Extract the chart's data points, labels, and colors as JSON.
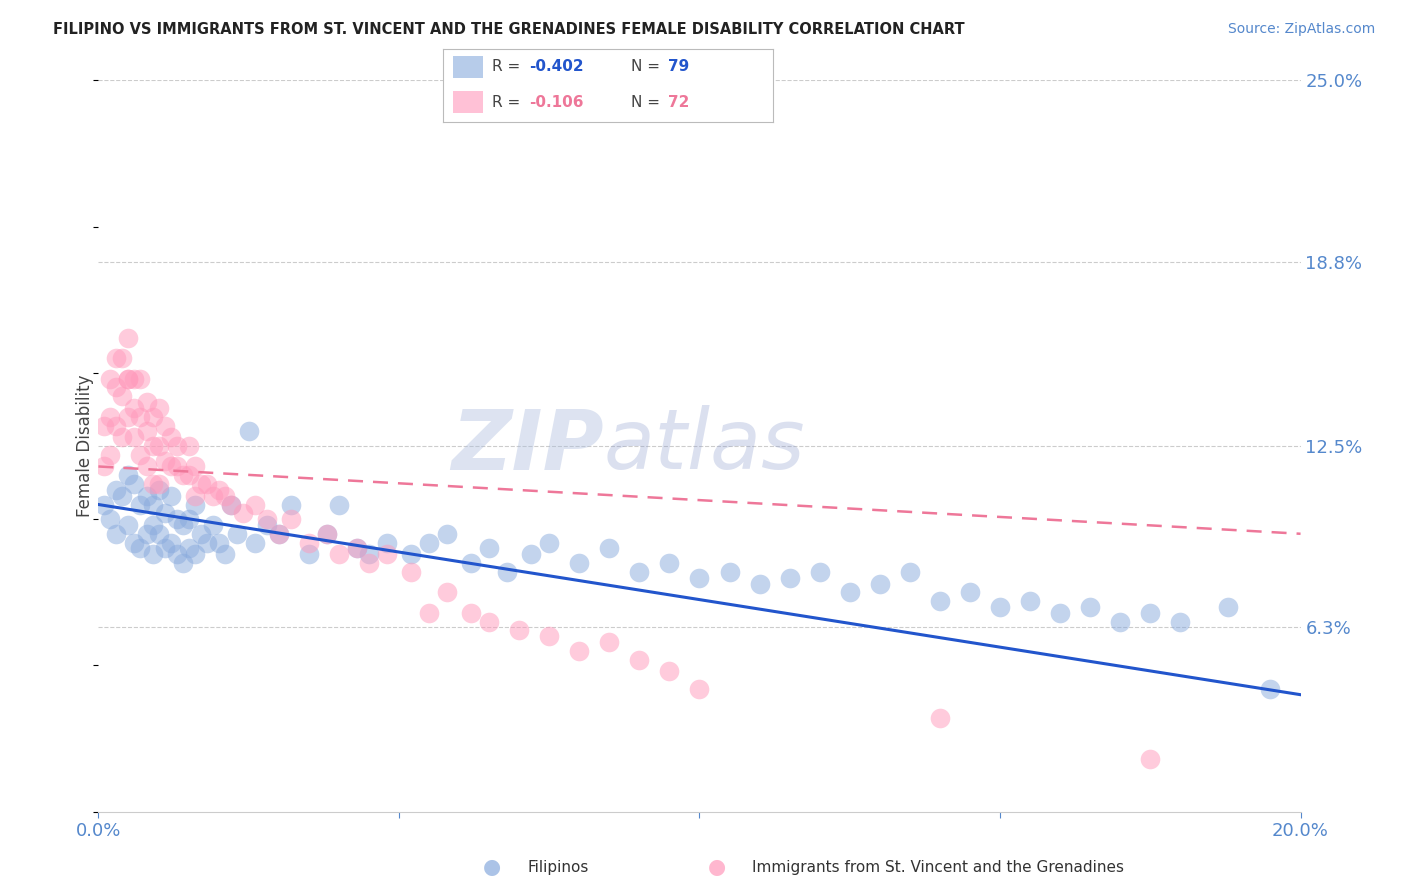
{
  "title": "FILIPINO VS IMMIGRANTS FROM ST. VINCENT AND THE GRENADINES FEMALE DISABILITY CORRELATION CHART",
  "source": "Source: ZipAtlas.com",
  "ylabel": "Female Disability",
  "xlim": [
    0.0,
    0.2
  ],
  "ylim": [
    0.0,
    0.25
  ],
  "ytick_vals": [
    0.063,
    0.125,
    0.188,
    0.25
  ],
  "ytick_labels": [
    "6.3%",
    "12.5%",
    "18.8%",
    "25.0%"
  ],
  "watermark_zip": "ZIP",
  "watermark_atlas": "atlas",
  "color_blue": "#88AADD",
  "color_pink": "#FF99BB",
  "color_blue_line": "#2255CC",
  "color_pink_line": "#EE7799",
  "color_axis_text": "#5588CC",
  "color_grid": "#CCCCCC",
  "filipino_x": [
    0.001,
    0.002,
    0.003,
    0.003,
    0.004,
    0.005,
    0.005,
    0.006,
    0.006,
    0.007,
    0.007,
    0.008,
    0.008,
    0.009,
    0.009,
    0.009,
    0.01,
    0.01,
    0.011,
    0.011,
    0.012,
    0.012,
    0.013,
    0.013,
    0.014,
    0.014,
    0.015,
    0.015,
    0.016,
    0.016,
    0.017,
    0.018,
    0.019,
    0.02,
    0.021,
    0.022,
    0.023,
    0.025,
    0.026,
    0.028,
    0.03,
    0.032,
    0.035,
    0.038,
    0.04,
    0.043,
    0.045,
    0.048,
    0.052,
    0.055,
    0.058,
    0.062,
    0.065,
    0.068,
    0.072,
    0.075,
    0.08,
    0.085,
    0.09,
    0.095,
    0.1,
    0.105,
    0.11,
    0.115,
    0.12,
    0.125,
    0.13,
    0.135,
    0.14,
    0.145,
    0.15,
    0.155,
    0.16,
    0.165,
    0.17,
    0.175,
    0.18,
    0.188,
    0.195
  ],
  "filipino_y": [
    0.105,
    0.1,
    0.11,
    0.095,
    0.108,
    0.115,
    0.098,
    0.112,
    0.092,
    0.105,
    0.09,
    0.108,
    0.095,
    0.105,
    0.098,
    0.088,
    0.11,
    0.095,
    0.102,
    0.09,
    0.108,
    0.092,
    0.1,
    0.088,
    0.098,
    0.085,
    0.1,
    0.09,
    0.105,
    0.088,
    0.095,
    0.092,
    0.098,
    0.092,
    0.088,
    0.105,
    0.095,
    0.13,
    0.092,
    0.098,
    0.095,
    0.105,
    0.088,
    0.095,
    0.105,
    0.09,
    0.088,
    0.092,
    0.088,
    0.092,
    0.095,
    0.085,
    0.09,
    0.082,
    0.088,
    0.092,
    0.085,
    0.09,
    0.082,
    0.085,
    0.08,
    0.082,
    0.078,
    0.08,
    0.082,
    0.075,
    0.078,
    0.082,
    0.072,
    0.075,
    0.07,
    0.072,
    0.068,
    0.07,
    0.065,
    0.068,
    0.065,
    0.07,
    0.042
  ],
  "svg_x": [
    0.001,
    0.001,
    0.002,
    0.002,
    0.002,
    0.003,
    0.003,
    0.003,
    0.004,
    0.004,
    0.004,
    0.005,
    0.005,
    0.005,
    0.005,
    0.006,
    0.006,
    0.006,
    0.007,
    0.007,
    0.007,
    0.008,
    0.008,
    0.008,
    0.009,
    0.009,
    0.009,
    0.01,
    0.01,
    0.01,
    0.011,
    0.011,
    0.012,
    0.012,
    0.013,
    0.013,
    0.014,
    0.015,
    0.015,
    0.016,
    0.016,
    0.017,
    0.018,
    0.019,
    0.02,
    0.021,
    0.022,
    0.024,
    0.026,
    0.028,
    0.03,
    0.032,
    0.035,
    0.038,
    0.04,
    0.043,
    0.045,
    0.048,
    0.052,
    0.055,
    0.058,
    0.062,
    0.065,
    0.07,
    0.075,
    0.08,
    0.085,
    0.09,
    0.095,
    0.1,
    0.14,
    0.175
  ],
  "svg_y": [
    0.132,
    0.118,
    0.148,
    0.135,
    0.122,
    0.155,
    0.145,
    0.132,
    0.155,
    0.142,
    0.128,
    0.148,
    0.162,
    0.148,
    0.135,
    0.148,
    0.138,
    0.128,
    0.148,
    0.135,
    0.122,
    0.14,
    0.13,
    0.118,
    0.135,
    0.125,
    0.112,
    0.138,
    0.125,
    0.112,
    0.132,
    0.12,
    0.128,
    0.118,
    0.125,
    0.118,
    0.115,
    0.125,
    0.115,
    0.118,
    0.108,
    0.112,
    0.112,
    0.108,
    0.11,
    0.108,
    0.105,
    0.102,
    0.105,
    0.1,
    0.095,
    0.1,
    0.092,
    0.095,
    0.088,
    0.09,
    0.085,
    0.088,
    0.082,
    0.068,
    0.075,
    0.068,
    0.065,
    0.062,
    0.06,
    0.055,
    0.058,
    0.052,
    0.048,
    0.042,
    0.032,
    0.018
  ],
  "blue_line_x0": 0.0,
  "blue_line_y0": 0.105,
  "blue_line_x1": 0.2,
  "blue_line_y1": 0.04,
  "pink_line_x0": 0.0,
  "pink_line_y0": 0.118,
  "pink_line_x1": 0.2,
  "pink_line_y1": 0.095
}
